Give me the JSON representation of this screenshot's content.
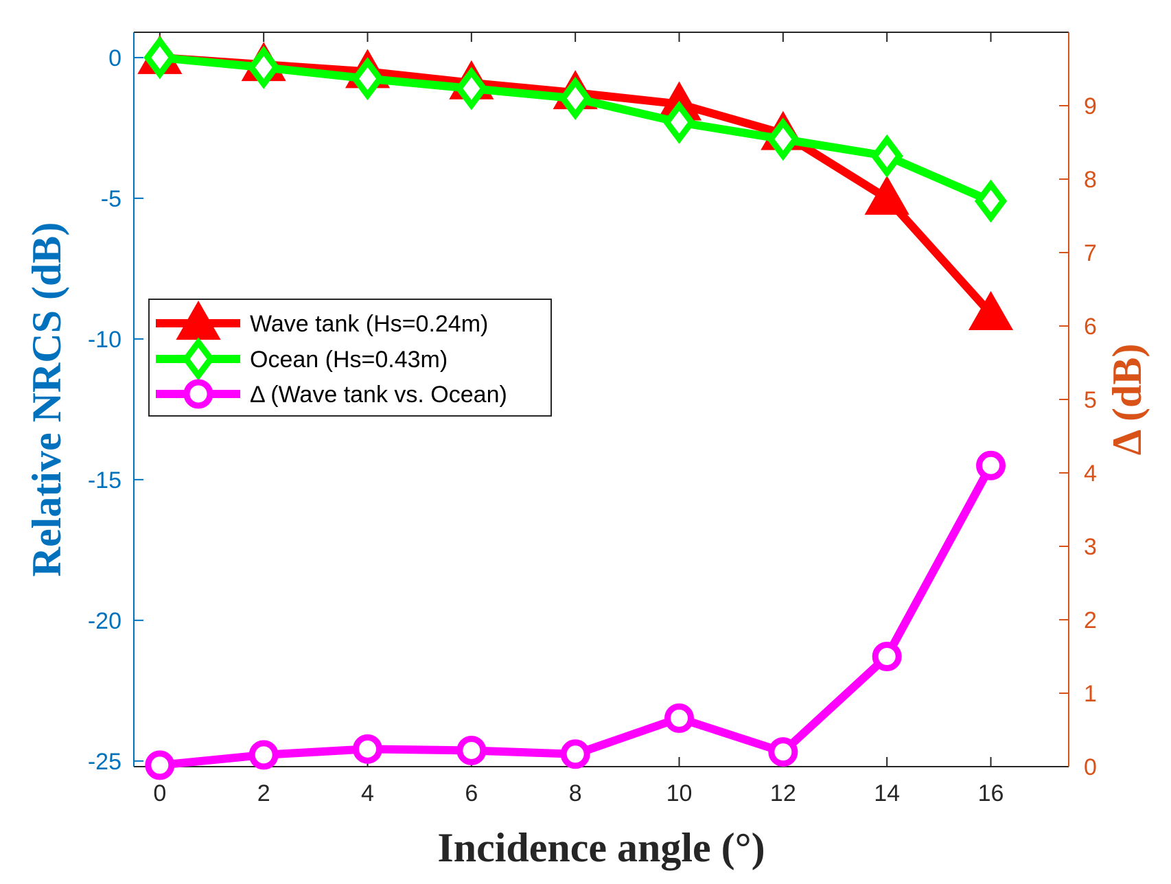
{
  "chart_data": {
    "type": "line",
    "x": [
      0,
      2,
      4,
      6,
      8,
      10,
      12,
      14,
      16
    ],
    "xlabel": "Incidence angle (°)",
    "ylabel_left": "Relative NRCS (dB)",
    "ylabel_right": "Δ (dB)",
    "xlim": [
      -0.5,
      17.5
    ],
    "ylim_left": [
      -25.2,
      0.9
    ],
    "ylim_right": [
      0,
      10
    ],
    "xticks": [
      "0",
      "2",
      "4",
      "6",
      "8",
      "10",
      "12",
      "14",
      "16"
    ],
    "yticks_left": [
      "0",
      "-5",
      "-10",
      "-15",
      "-20",
      "-25"
    ],
    "yticks_right": [
      "0",
      "1",
      "2",
      "3",
      "4",
      "5",
      "6",
      "7",
      "8",
      "9"
    ],
    "series": [
      {
        "name": "Wave tank (Hs=0.24m)",
        "axis": "left",
        "marker": "triangle",
        "color": "#ff0000",
        "values": [
          0,
          -0.25,
          -0.5,
          -0.9,
          -1.25,
          -1.65,
          -2.7,
          -5.0,
          -9.1
        ]
      },
      {
        "name": "Ocean (Hs=0.43m)",
        "axis": "left",
        "marker": "diamond",
        "color": "#00ff00",
        "values": [
          0,
          -0.35,
          -0.75,
          -1.1,
          -1.45,
          -2.3,
          -2.9,
          -3.5,
          -5.1
        ]
      },
      {
        "name": "Δ (Wave tank vs. Ocean)",
        "axis": "right",
        "marker": "circle",
        "color": "#ff00ff",
        "values": [
          0.02,
          0.16,
          0.24,
          0.22,
          0.17,
          0.66,
          0.2,
          1.5,
          4.1
        ]
      }
    ],
    "legend_position": "middle-left"
  },
  "colors": {
    "left_axis": "#0072bd",
    "right_axis": "#d95319",
    "x_axis": "#262626"
  }
}
